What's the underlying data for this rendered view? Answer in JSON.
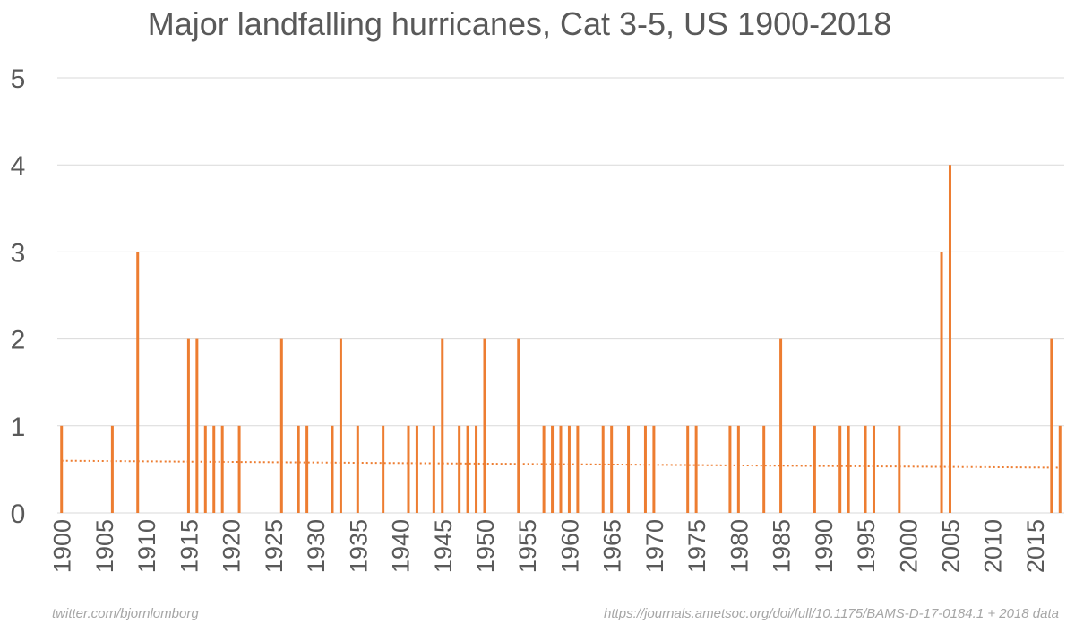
{
  "chart_data": {
    "type": "bar",
    "title": "Major landfalling hurricanes, Cat 3-5, US 1900-2018",
    "xlabel": "",
    "ylabel": "",
    "xlim": [
      1900,
      2018
    ],
    "ylim": [
      0,
      5
    ],
    "y_ticks": [
      "0",
      "1",
      "2",
      "3",
      "4",
      "5"
    ],
    "x_tick_labels": [
      "1900",
      "1905",
      "1910",
      "1915",
      "1920",
      "1925",
      "1930",
      "1935",
      "1940",
      "1945",
      "1950",
      "1955",
      "1960",
      "1965",
      "1970",
      "1975",
      "1980",
      "1985",
      "1990",
      "1995",
      "2000",
      "2005",
      "2010",
      "2015"
    ],
    "grid": true,
    "legend": "none",
    "bar_color": "#ED7D31",
    "series": [
      {
        "x": [
          1900,
          1906,
          1909,
          1915,
          1916,
          1917,
          1918,
          1919,
          1921,
          1926,
          1928,
          1929,
          1932,
          1933,
          1935,
          1938,
          1941,
          1942,
          1944,
          1945,
          1947,
          1948,
          1949,
          1950,
          1954,
          1957,
          1958,
          1959,
          1960,
          1961,
          1964,
          1965,
          1967,
          1969,
          1970,
          1974,
          1975,
          1979,
          1980,
          1983,
          1985,
          1989,
          1992,
          1993,
          1995,
          1996,
          1999,
          2004,
          2005,
          2017,
          2018
        ],
        "values": [
          1,
          1,
          3,
          2,
          2,
          1,
          1,
          1,
          1,
          2,
          1,
          1,
          1,
          2,
          1,
          1,
          1,
          1,
          1,
          2,
          1,
          1,
          1,
          2,
          2,
          1,
          1,
          1,
          1,
          1,
          1,
          1,
          1,
          1,
          1,
          1,
          1,
          1,
          1,
          1,
          2,
          1,
          1,
          1,
          1,
          1,
          1,
          3,
          4,
          2,
          1
        ]
      }
    ],
    "trendline": {
      "type": "linear",
      "style": "dotted",
      "start": [
        1900,
        0.6
      ],
      "end": [
        2018,
        0.52
      ]
    }
  },
  "footer": {
    "left": "twitter.com/bjornlomborg",
    "right": "https://journals.ametsoc.org/doi/full/10.1175/BAMS-D-17-0184.1 + 2018 data"
  }
}
